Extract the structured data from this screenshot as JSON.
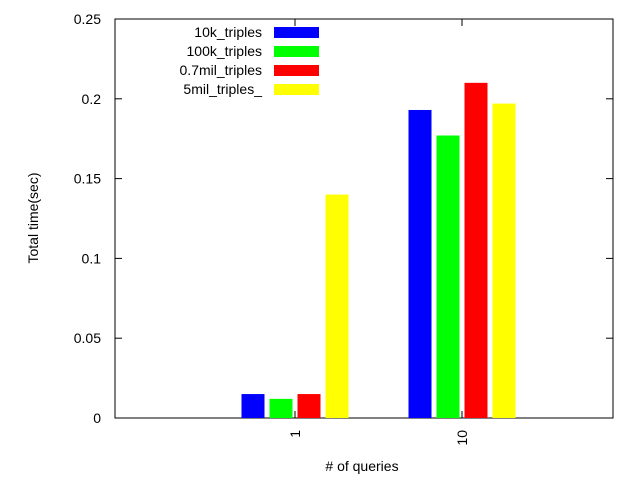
{
  "chart_data": {
    "type": "bar",
    "categories": [
      "1",
      "10"
    ],
    "series": [
      {
        "name": "10k_triples",
        "color": "#0000ff",
        "values": [
          0.015,
          0.193
        ]
      },
      {
        "name": "100k_triples",
        "color": "#00ff00",
        "values": [
          0.012,
          0.177
        ]
      },
      {
        "name": "0.7mil_triples",
        "color": "#ff0000",
        "values": [
          0.015,
          0.21
        ]
      },
      {
        "name": "5mil_triples_",
        "color": "#ffff00",
        "values": [
          0.14,
          0.197
        ]
      }
    ],
    "xlabel": "# of queries",
    "ylabel": "Total time(sec)",
    "ylim": [
      0,
      0.25
    ],
    "yticks": [
      "0",
      "0.05",
      "0.1",
      "0.15",
      "0.2",
      "0.25"
    ],
    "grid": false,
    "legend_position": "top-left"
  }
}
